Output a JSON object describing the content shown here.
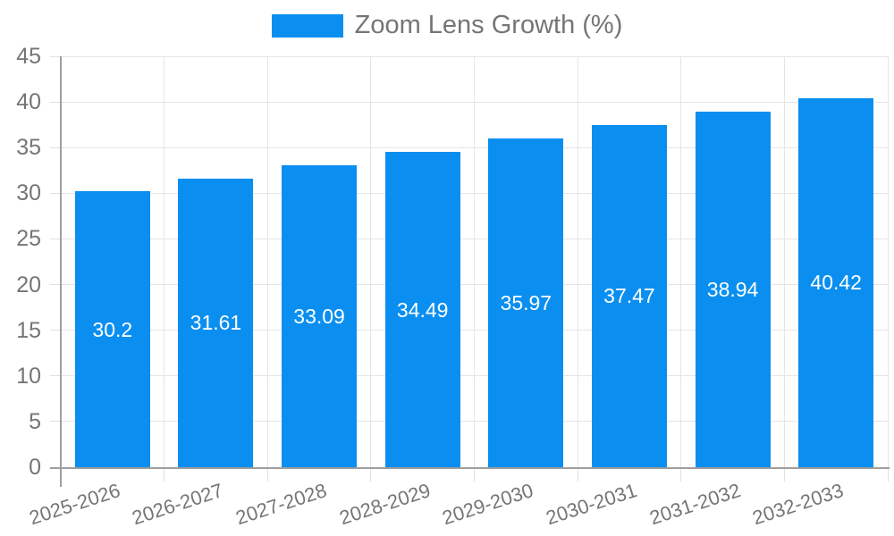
{
  "chart_data": {
    "type": "bar",
    "title": "",
    "legend": "Zoom Lens Growth (%)",
    "legend_position": "top-center",
    "categories": [
      "2025-2026",
      "2026-2027",
      "2027-2028",
      "2028-2029",
      "2029-2030",
      "2030-2031",
      "2031-2032",
      "2032-2033"
    ],
    "values": [
      30.2,
      31.61,
      33.09,
      34.49,
      35.97,
      37.47,
      38.94,
      40.42
    ],
    "value_labels": [
      "30.2",
      "31.61",
      "33.09",
      "34.49",
      "35.97",
      "37.47",
      "38.94",
      "40.42"
    ],
    "xlabel": "",
    "ylabel": "",
    "ylim": [
      0,
      45
    ],
    "yticks": [
      0,
      5,
      10,
      15,
      20,
      25,
      30,
      35,
      40,
      45
    ],
    "grid": true,
    "bar_color": "#0a8ff0",
    "value_label_color": "#ffffff",
    "axis_text_color": "#757575",
    "grid_color": "#e5e5e5",
    "axis_line_color": "#9e9e9e"
  }
}
